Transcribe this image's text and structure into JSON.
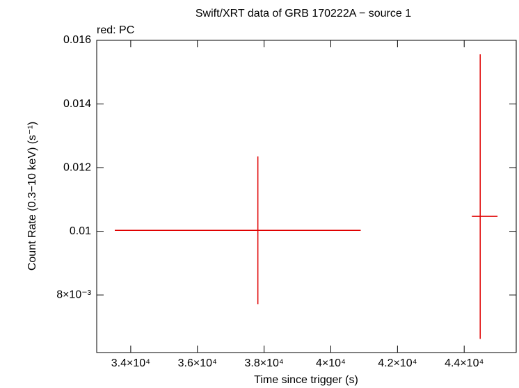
{
  "chart_data": {
    "type": "errorbar",
    "title": "Swift/XRT data of GRB 170222A − source 1",
    "subtitle": "red: PC",
    "x_label": "Time since trigger (s)",
    "y_label": "Count Rate (0.3−10 keV) (s⁻¹)",
    "xlim": [
      32980,
      45560
    ],
    "ylim": [
      0.00619,
      0.016
    ],
    "xticks": [
      {
        "value": 34000,
        "label": "3.4×10⁴"
      },
      {
        "value": 36000,
        "label": "3.6×10⁴"
      },
      {
        "value": 38000,
        "label": "3.8×10⁴"
      },
      {
        "value": 40000,
        "label": "4×10⁴"
      },
      {
        "value": 42000,
        "label": "4.2×10⁴"
      },
      {
        "value": 44000,
        "label": "4.4×10⁴"
      }
    ],
    "yticks": [
      {
        "value": 0.008,
        "label": "8×10⁻³"
      },
      0.01,
      0.012,
      0.014,
      0.016
    ],
    "series": [
      {
        "name": "PC",
        "color": "#e00000",
        "x": [
          37813,
          44480
        ],
        "x_low": [
          33522,
          44230
        ],
        "x_high": [
          40897,
          45000
        ],
        "y": [
          0.01003,
          0.01047
        ],
        "y_low": [
          0.00771,
          0.00662
        ],
        "y_high": [
          0.01235,
          0.01556
        ]
      }
    ]
  }
}
